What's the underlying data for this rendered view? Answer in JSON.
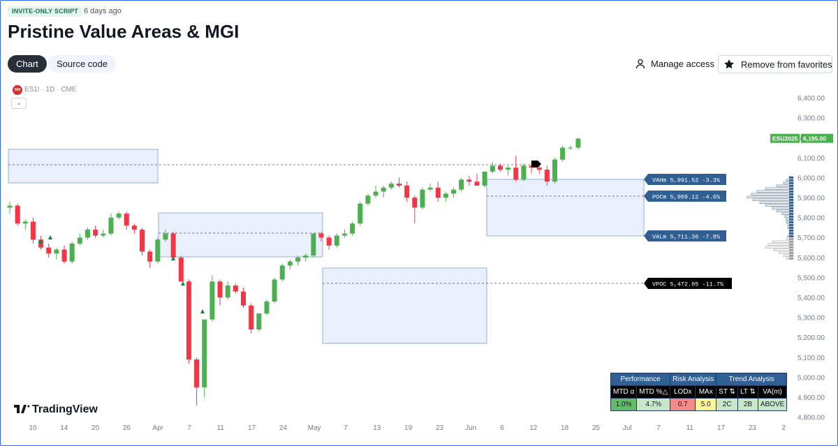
{
  "header": {
    "badge": "INVITE-ONLY SCRIPT",
    "posted_ago": "6 days ago",
    "title": "Pristine Value Areas & MGI"
  },
  "tabs": {
    "chart": "Chart",
    "source": "Source code"
  },
  "actions": {
    "manage": "Manage access",
    "favorite": "Remove from favorites"
  },
  "symbol": {
    "logo": "500",
    "label": "ES1! · 1D · CME"
  },
  "branding": "TradingView",
  "price_axis": [
    "6,400.00",
    "6,300.00",
    "6,200.00",
    "6,100.00",
    "6,000.00",
    "5,900.00",
    "5,800.00",
    "5,700.00",
    "5,600.00",
    "5,500.00",
    "5,400.00",
    "5,300.00",
    "5,200.00",
    "5,100.00",
    "5,000.00",
    "4,900.00",
    "4,800.00"
  ],
  "time_axis": [
    "10",
    "14",
    "20",
    "26",
    "Apr",
    "7",
    "11",
    "17",
    "24",
    "May",
    "7",
    "13",
    "19",
    "23",
    "Jun",
    "6",
    "12",
    "18",
    "25",
    "Jul",
    "7",
    "11",
    "17",
    "23",
    "2"
  ],
  "last_price": {
    "symbol": "ESU2025",
    "value": "6,195.00"
  },
  "levels": [
    {
      "name": "VAHm",
      "value": "5,991.52",
      "pct": "-3.3%"
    },
    {
      "name": "POCm",
      "value": "5,909.12",
      "pct": "-4.6%"
    },
    {
      "name": "VALm",
      "value": "5,711.36",
      "pct": "-7.8%"
    },
    {
      "name": "VPOC",
      "value": "5,472.05",
      "pct": "-11.7%"
    }
  ],
  "colors": {
    "up": "#4caf50",
    "down": "#f23645",
    "zone": "#e9effb",
    "zone_border": "#7b9ec9",
    "label_bg": "#2f5f93"
  },
  "table": {
    "groups": [
      "Performance",
      "Risk Analysis",
      "Trend Analysis"
    ],
    "subheaders": [
      "MTD α",
      "MTD %△",
      "LODx",
      "MAx",
      "ST ⇅",
      "LT ⇅",
      "VA(m)"
    ],
    "values": [
      "1.0%",
      "4.7%",
      "0.7",
      "5.0",
      "2C",
      "2B",
      "ABOVE"
    ]
  }
}
